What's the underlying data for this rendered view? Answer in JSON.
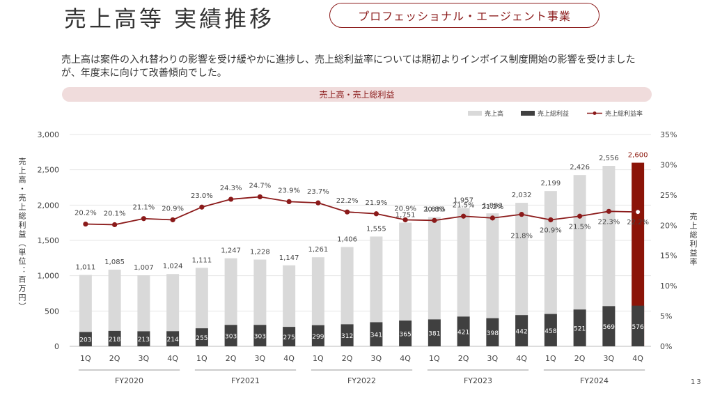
{
  "header": {
    "title": "売上高等 実績推移",
    "badge": "プロフェッショナル・エージェント事業"
  },
  "description": "売上高は案件の入れ替わりの影響を受け緩やかに進捗し、売上総利益率については期初よりインボイス制度開始の影響を受けましたが、年度末に向けて改善傾向でした。",
  "banner": "売上高・売上総利益",
  "page_number": "13",
  "colors": {
    "sales": "#d9d9d9",
    "gross_profit": "#404040",
    "margin_line": "#8b1a1a",
    "highlight_sales": "#8b1408"
  },
  "chart_data": {
    "type": "bar",
    "title": "売上高・売上総利益",
    "ylabel": "売上高・売上総利益（単位：百万円）",
    "ylabel_right": "売上総利益率",
    "ylim": [
      0,
      3000
    ],
    "yticks": [
      "0",
      "500",
      "1,000",
      "1,500",
      "2,000",
      "2,500",
      "3,000"
    ],
    "ylim_right": [
      0,
      35
    ],
    "yticks_right": [
      "0%",
      "5%",
      "10%",
      "15%",
      "20%",
      "25%",
      "30%",
      "35%"
    ],
    "legend_position": "top-right",
    "legend": [
      "売上高",
      "売上総利益",
      "売上総利益率"
    ],
    "categories": [
      "1Q",
      "2Q",
      "3Q",
      "4Q",
      "1Q",
      "2Q",
      "3Q",
      "4Q",
      "1Q",
      "2Q",
      "3Q",
      "4Q",
      "1Q",
      "2Q",
      "3Q",
      "4Q",
      "1Q",
      "2Q",
      "3Q",
      "4Q"
    ],
    "groups": [
      "FY2020",
      "FY2021",
      "FY2022",
      "FY2023",
      "FY2024"
    ],
    "sales_labels": [
      "1,011",
      "1,085",
      "1,007",
      "1,024",
      "1,111",
      "1,247",
      "1,228",
      "1,147",
      "1,261",
      "1,406",
      "1,555",
      "1,751",
      "1,830",
      "1,957",
      "1,883",
      "2,032",
      "2,199",
      "2,426",
      "2,556",
      "2,600"
    ],
    "series": [
      {
        "name": "売上高",
        "type": "bar",
        "values": [
          1011,
          1085,
          1007,
          1024,
          1111,
          1247,
          1228,
          1147,
          1261,
          1406,
          1555,
          1751,
          1830,
          1957,
          1883,
          2032,
          2199,
          2426,
          2556,
          2600
        ]
      },
      {
        "name": "売上総利益",
        "type": "bar",
        "values": [
          203,
          218,
          213,
          214,
          255,
          303,
          303,
          275,
          299,
          312,
          341,
          365,
          381,
          421,
          398,
          442,
          458,
          521,
          569,
          576
        ]
      },
      {
        "name": "売上総利益率",
        "type": "line",
        "axis": "right",
        "values": [
          20.2,
          20.1,
          21.1,
          20.9,
          23.0,
          24.3,
          24.7,
          23.9,
          23.7,
          22.2,
          21.9,
          20.9,
          20.8,
          21.5,
          21.2,
          21.8,
          20.9,
          21.5,
          22.3,
          22.2
        ],
        "labels": [
          "20.2%",
          "20.1%",
          "21.1%",
          "20.9%",
          "23.0%",
          "24.3%",
          "24.7%",
          "23.9%",
          "23.7%",
          "22.2%",
          "21.9%",
          "20.9%",
          "20.8%",
          "21.5%",
          "21.2%",
          "21.8%",
          "20.9%",
          "21.5%",
          "22.3%",
          "22.2%"
        ]
      }
    ]
  }
}
